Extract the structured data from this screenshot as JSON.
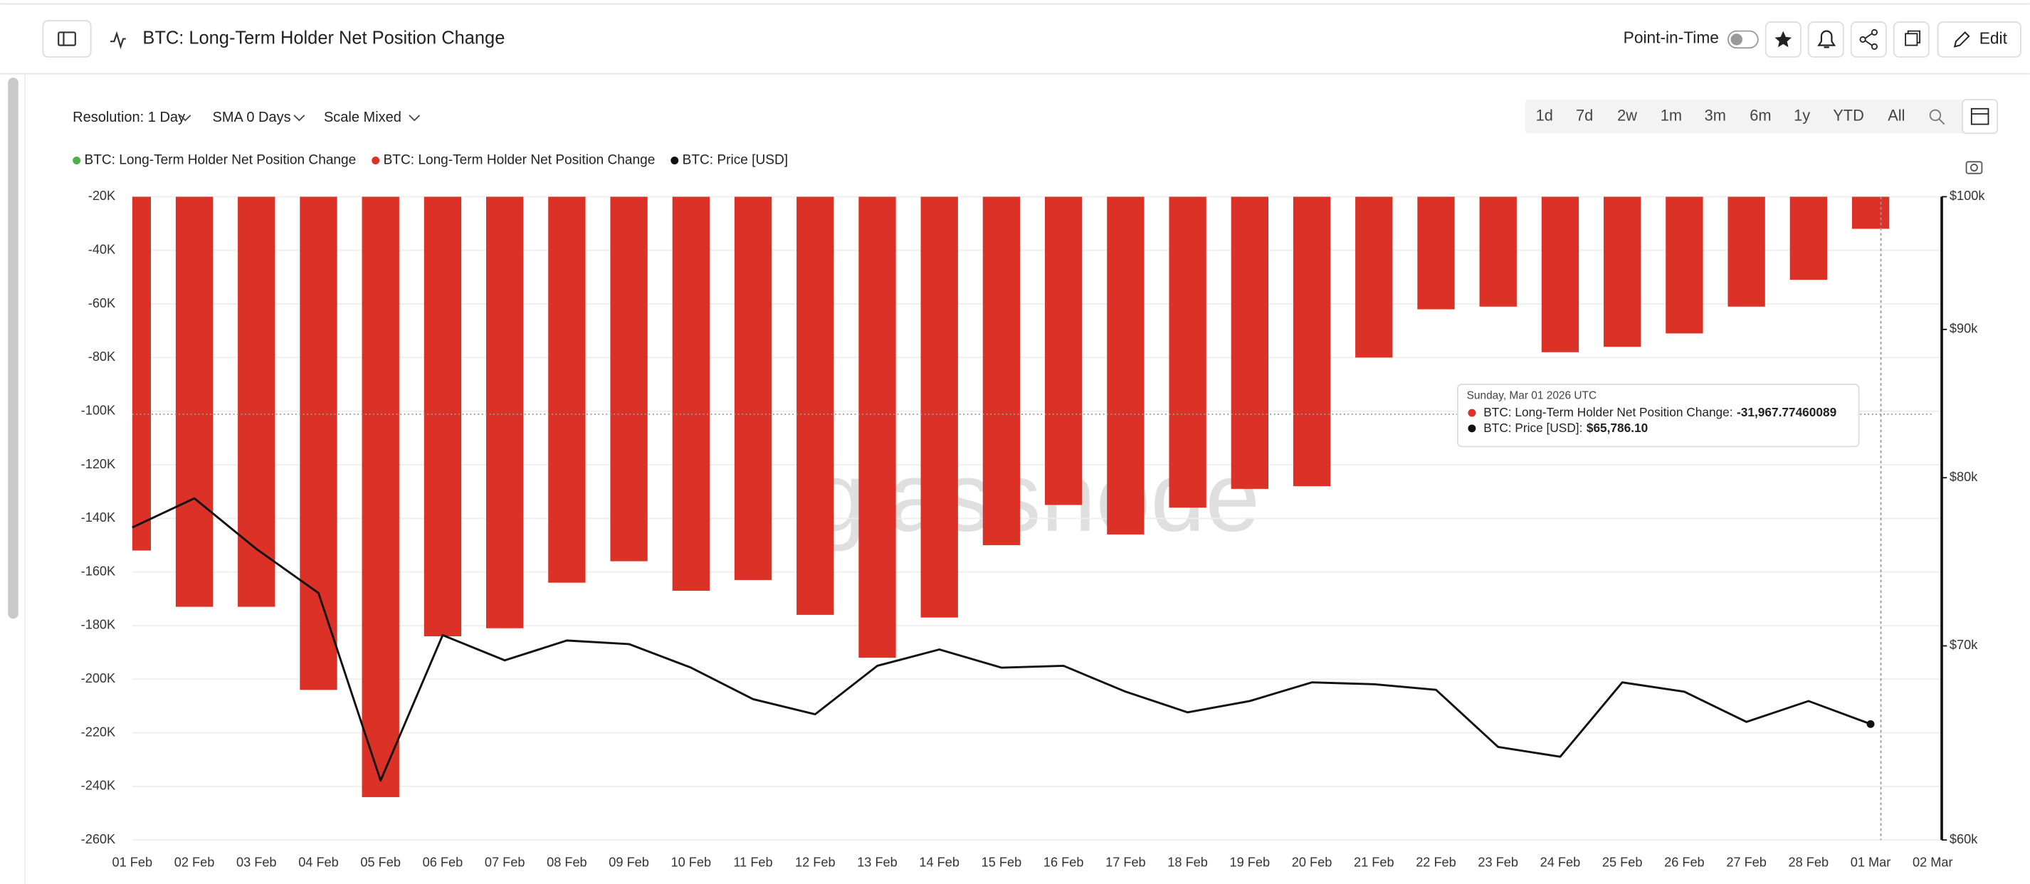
{
  "header": {
    "title": "BTC: Long-Term Holder Net Position Change",
    "point_in_time": "Point-in-Time",
    "edit": "Edit"
  },
  "controls": {
    "resolution": "Resolution: 1 Day",
    "sma": "SMA 0 Days",
    "scale": "Scale Mixed",
    "ranges": [
      "1d",
      "7d",
      "2w",
      "1m",
      "3m",
      "6m",
      "1y",
      "YTD",
      "All"
    ]
  },
  "chart_data": {
    "type": "bar",
    "legend": [
      {
        "label": "BTC: Long-Term Holder Net Position Change",
        "color": "#4caf50"
      },
      {
        "label": "BTC: Long-Term Holder Net Position Change",
        "color": "#dc3126"
      },
      {
        "label": "BTC: Price [USD]",
        "color": "#111111"
      }
    ],
    "categories": [
      "01 Feb",
      "02 Feb",
      "03 Feb",
      "04 Feb",
      "05 Feb",
      "06 Feb",
      "07 Feb",
      "08 Feb",
      "09 Feb",
      "10 Feb",
      "11 Feb",
      "12 Feb",
      "13 Feb",
      "14 Feb",
      "15 Feb",
      "16 Feb",
      "17 Feb",
      "18 Feb",
      "19 Feb",
      "20 Feb",
      "21 Feb",
      "22 Feb",
      "23 Feb",
      "24 Feb",
      "25 Feb",
      "26 Feb",
      "27 Feb",
      "28 Feb",
      "01 Mar",
      "02 Mar"
    ],
    "series": [
      {
        "name": "BTC: Long-Term Holder Net Position Change",
        "type": "bar",
        "color": "#dc3126",
        "values": [
          -152000,
          -173000,
          -173000,
          -204000,
          -244000,
          -184000,
          -181000,
          -164000,
          -156000,
          -167000,
          -163000,
          -176000,
          -192000,
          -177000,
          -150000,
          -135000,
          -146000,
          -136000,
          -129000,
          -128000,
          -80000,
          -62000,
          -61000,
          -78000,
          -76000,
          -71000,
          -61000,
          -51000,
          -31967.77460089,
          null
        ]
      },
      {
        "name": "BTC: Price [USD]",
        "type": "line",
        "axis": "y2",
        "color": "#111111",
        "values": [
          76900,
          78700,
          75600,
          73000,
          62900,
          70600,
          69200,
          70300,
          70100,
          68800,
          67100,
          66300,
          68900,
          69800,
          68800,
          68900,
          67500,
          66400,
          67000,
          68000,
          67900,
          67600,
          64600,
          64100,
          68000,
          67500,
          65900,
          67000,
          65786.1,
          null
        ]
      }
    ],
    "ylim": [
      -260000,
      -20000
    ],
    "yticks": [
      {
        "value": -20000,
        "label": "-20K"
      },
      {
        "value": -40000,
        "label": "-40K"
      },
      {
        "value": -60000,
        "label": "-60K"
      },
      {
        "value": -80000,
        "label": "-80K"
      },
      {
        "value": -100000,
        "label": "-100K"
      },
      {
        "value": -120000,
        "label": "-120K"
      },
      {
        "value": -140000,
        "label": "-140K"
      },
      {
        "value": -160000,
        "label": "-160K"
      },
      {
        "value": -180000,
        "label": "-180K"
      },
      {
        "value": -200000,
        "label": "-200K"
      },
      {
        "value": -220000,
        "label": "-220K"
      },
      {
        "value": -240000,
        "label": "-240K"
      },
      {
        "value": -260000,
        "label": "-260K"
      }
    ],
    "y2lim": [
      60000,
      100000
    ],
    "y2scale": "log",
    "y2ticks": [
      {
        "value": 100000,
        "label": "$100k"
      },
      {
        "value": 90000,
        "label": "$90k"
      },
      {
        "value": 80000,
        "label": "$80k"
      },
      {
        "value": 70000,
        "label": "$70k"
      },
      {
        "value": 60000,
        "label": "$60k"
      }
    ],
    "grid": true,
    "watermark": "glassnode",
    "tooltip": {
      "title": "Sunday, Mar 01 2026 UTC",
      "rows": [
        {
          "label": "BTC: Long-Term Holder Net Position Change:",
          "value": "-31,967.77460089",
          "color": "#dc3126"
        },
        {
          "label": "BTC: Price [USD]:",
          "value": "$65,786.10",
          "color": "#111111"
        }
      ]
    }
  }
}
